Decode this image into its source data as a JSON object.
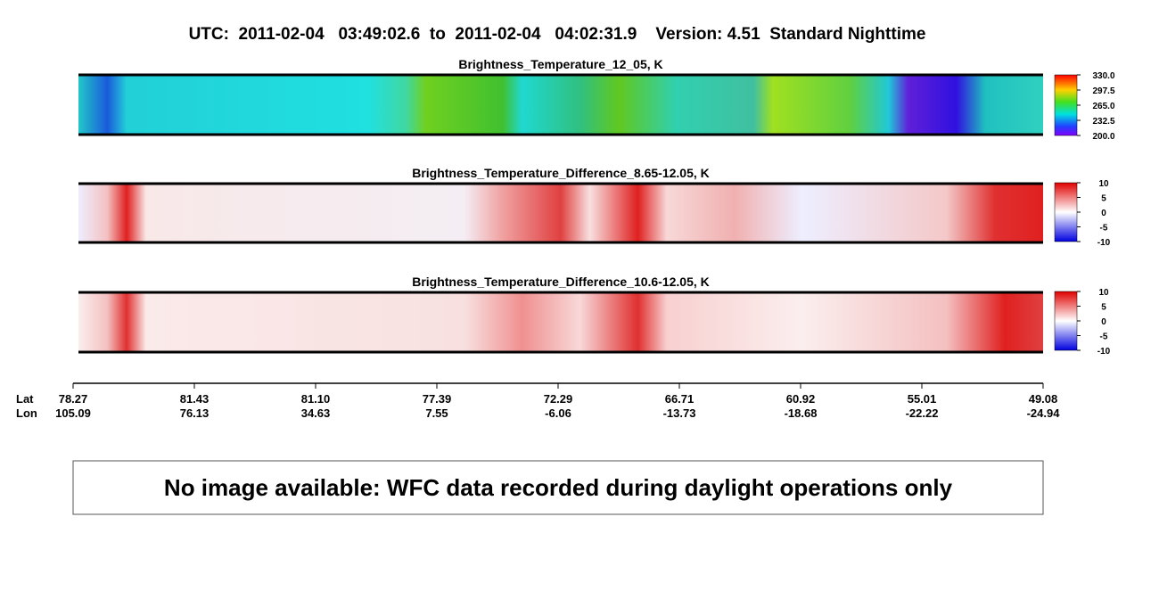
{
  "header": {
    "title": "UTC:  2011-02-04   03:49:02.6  to  2011-02-04   04:02:31.9    Version: 4.51  Standard Nighttime"
  },
  "panels": [
    {
      "title": "Brightness_Temperature_12_05, K",
      "colorbar_ticks": [
        "330.0",
        "297.5",
        "265.0",
        "232.5",
        "200.0"
      ]
    },
    {
      "title": "Brightness_Temperature_Difference_8.65-12.05, K",
      "colorbar_ticks": [
        "10",
        "5",
        "0",
        "-5",
        "-10"
      ]
    },
    {
      "title": "Brightness_Temperature_Difference_10.6-12.05, K",
      "colorbar_ticks": [
        "10",
        "5",
        "0",
        "-5",
        "-10"
      ]
    }
  ],
  "axis": {
    "lat_label": "Lat",
    "lon_label": "Lon",
    "lat": [
      "78.27",
      "81.43",
      "81.10",
      "77.39",
      "72.29",
      "66.71",
      "60.92",
      "55.01",
      "49.08"
    ],
    "lon": [
      "105.09",
      "76.13",
      "34.63",
      "7.55",
      "-6.06",
      "-13.73",
      "-18.68",
      "-22.22",
      "-24.94"
    ]
  },
  "notice": "No image available: WFC data recorded during daylight operations only"
}
